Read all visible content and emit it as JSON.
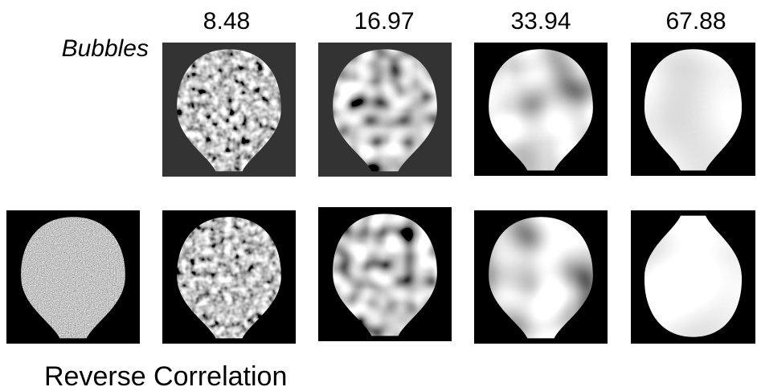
{
  "columns": [
    "8.48",
    "16.97",
    "33.94",
    "67.88"
  ],
  "rows": [
    {
      "label": "Bubbles"
    },
    {
      "label": "Reverse Correlation"
    }
  ]
}
